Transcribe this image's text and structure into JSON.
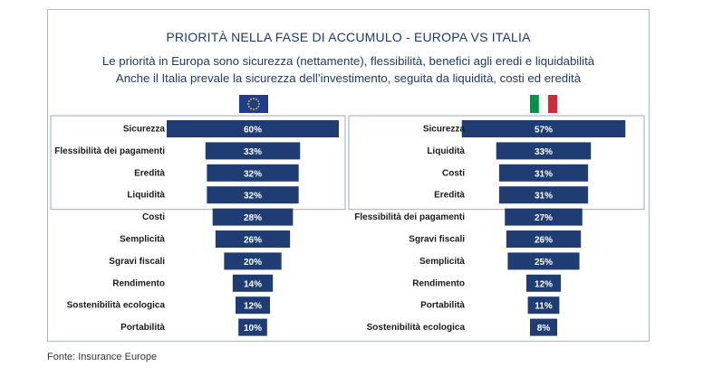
{
  "header": {
    "title": "PRIORITÀ NELLA FASE DI ACCUMULO - EUROPA VS ITALIA",
    "subtitle_1": "Le priorità in Europa sono sicurezza (nettamente), flessibilità, benefici agli eredi e liquidabilità",
    "subtitle_2": "Anche il Italia prevale la sicurezza dell’investimento, seguita da liquidità, costi ed eredità"
  },
  "source": "Fonte: Insurance Europe",
  "colors": {
    "bar": "#1f3d72",
    "eu_flag": "#1f3d8c",
    "eu_stars": "#ffd500",
    "it_green": "#009246",
    "it_white": "#ffffff",
    "it_red": "#ce2b37",
    "frame": "#aeb8c8"
  },
  "chart_data": [
    {
      "type": "bar",
      "orientation": "horizontal-centered",
      "region_icon": "eu-flag-icon",
      "categories": [
        "Sicurezza",
        "Flessibilità dei pagamenti",
        "Eredità",
        "Liquidità",
        "Costi",
        "Semplicità",
        "Sgravi fiscali",
        "Rendimento",
        "Sostenibilità ecologica",
        "Portabilità"
      ],
      "values": [
        60,
        33,
        32,
        32,
        28,
        26,
        20,
        14,
        12,
        10
      ],
      "labels": [
        "60%",
        "33%",
        "32%",
        "32%",
        "28%",
        "26%",
        "20%",
        "14%",
        "12%",
        "10%"
      ],
      "highlighted_top": 4
    },
    {
      "type": "bar",
      "orientation": "horizontal-centered",
      "region_icon": "italy-flag-icon",
      "categories": [
        "Sicurezza",
        "Liquidità",
        "Costi",
        "Eredità",
        "Flessibilità dei pagamenti",
        "Sgravi fiscali",
        "Semplicità",
        "Rendimento",
        "Portabilità",
        "Sostenibilità ecologica"
      ],
      "values": [
        57,
        33,
        31,
        31,
        27,
        26,
        25,
        12,
        11,
        8
      ],
      "labels": [
        "57%",
        "33%",
        "31%",
        "31%",
        "27%",
        "26%",
        "25%",
        "12%",
        "11%",
        "8%"
      ],
      "highlighted_top": 4
    }
  ]
}
